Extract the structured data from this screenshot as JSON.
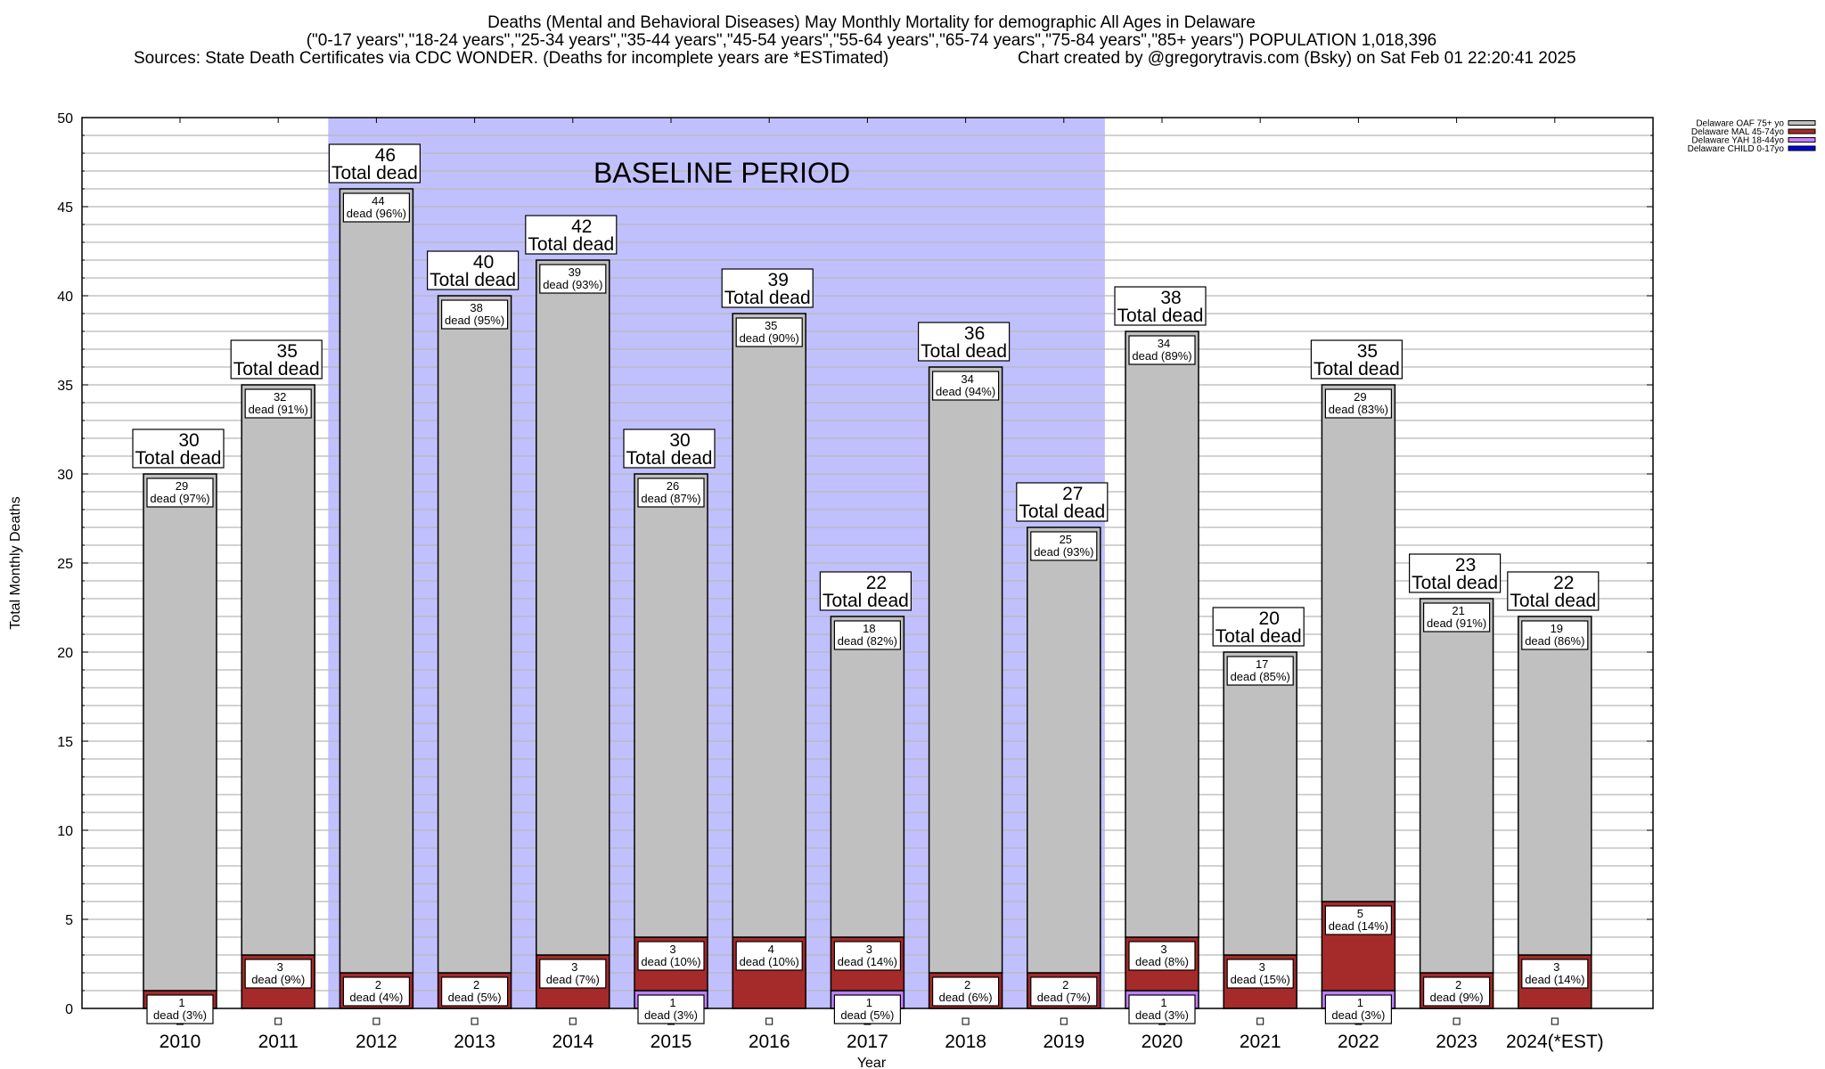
{
  "chart_data": {
    "type": "bar",
    "stacked": true,
    "title_lines": [
      "Deaths (Mental and Behavioral Diseases) May Monthly Mortality for demographic All Ages in Delaware",
      "(\"0-17 years\",\"18-24 years\",\"25-34 years\",\"35-44 years\",\"45-54 years\",\"55-64 years\",\"65-74 years\",\"75-84 years\",\"85+ years\") POPULATION 1,018,396",
      "Sources: State Death Certificates via CDC WONDER. (Deaths for incomplete years are *ESTimated)",
      "Chart created by @gregorytravis.com (Bsky) on Sat Feb 01 22:20:41 2025"
    ],
    "xlabel": "Year",
    "ylabel": "Total Monthly Deaths",
    "ylim": [
      0,
      50
    ],
    "yticks": [
      0,
      5,
      10,
      15,
      20,
      25,
      30,
      35,
      40,
      45,
      50
    ],
    "minor_grid_step": 1,
    "grid": true,
    "legend_position": "top-right",
    "categories": [
      "2010",
      "2011",
      "2012",
      "2013",
      "2014",
      "2015",
      "2016",
      "2017",
      "2018",
      "2019",
      "2020",
      "2021",
      "2022",
      "2023",
      "2024(*EST)"
    ],
    "series": [
      {
        "name": "Delaware CHILD 0-17yo",
        "color": "#0000e0",
        "values": [
          0,
          0,
          0,
          0,
          0,
          0,
          0,
          0,
          0,
          0,
          0,
          0,
          0,
          0,
          0
        ]
      },
      {
        "name": "Delaware YAH 18-44yo",
        "color": "#c080ff",
        "values": [
          0,
          0,
          0,
          0,
          0,
          1,
          0,
          1,
          0,
          0,
          1,
          0,
          1,
          0,
          0
        ]
      },
      {
        "name": "Delaware MAL 45-74yo",
        "color": "#a52a2a",
        "values": [
          1,
          3,
          2,
          2,
          3,
          3,
          4,
          3,
          2,
          2,
          3,
          3,
          5,
          2,
          3
        ]
      },
      {
        "name": "Delaware OAF 75+ yo",
        "color": "#c0c0c0",
        "values": [
          29,
          32,
          44,
          38,
          39,
          26,
          35,
          18,
          34,
          25,
          34,
          17,
          29,
          21,
          19
        ]
      }
    ],
    "totals": [
      30,
      35,
      46,
      40,
      42,
      30,
      39,
      22,
      36,
      27,
      38,
      20,
      35,
      23,
      22
    ],
    "total_label_text": "Total dead",
    "segment_label_text": "dead",
    "segment_labels": {
      "Delaware OAF 75+ yo": [
        "97%",
        "91%",
        "96%",
        "95%",
        "93%",
        "87%",
        "90%",
        "82%",
        "94%",
        "93%",
        "89%",
        "85%",
        "83%",
        "91%",
        "86%"
      ],
      "Delaware MAL 45-74yo": [
        "3%",
        "9%",
        "4%",
        "5%",
        "7%",
        "10%",
        "10%",
        "14%",
        "6%",
        "7%",
        "8%",
        "15%",
        "14%",
        "9%",
        "14%"
      ],
      "Delaware YAH 18-44yo": [
        null,
        null,
        null,
        null,
        null,
        "3%",
        null,
        "5%",
        null,
        null,
        "3%",
        null,
        "3%",
        null,
        null
      ]
    },
    "annotation": {
      "text": "BASELINE PERIOD",
      "span": [
        "2012",
        "2019"
      ],
      "shade_color": "#c0c0ff"
    },
    "legend_order": [
      "Delaware OAF 75+ yo",
      "Delaware MAL 45-74yo",
      "Delaware YAH 18-44yo",
      "Delaware CHILD 0-17yo"
    ]
  }
}
